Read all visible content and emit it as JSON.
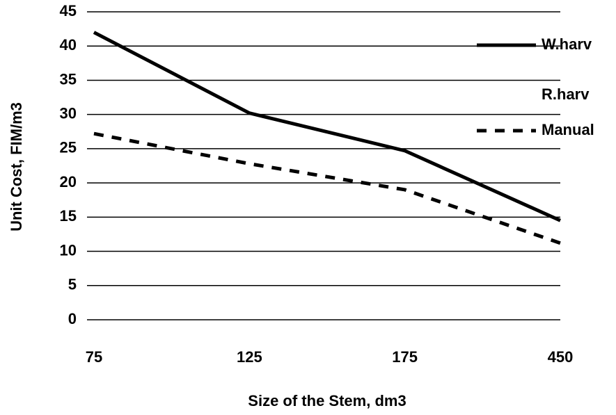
{
  "chart_data": {
    "type": "line",
    "x_label": "Size of the Stem, dm3",
    "y_label": "Unit Cost, FIM/m3",
    "categories": [
      "75",
      "125",
      "175",
      "450"
    ],
    "series": [
      {
        "name": "W.harv",
        "color": "#000000",
        "dash": "solid",
        "values": [
          42,
          30.2,
          24.7,
          14.5
        ]
      },
      {
        "name": "R.harv",
        "color": "#ffffff",
        "dash": "solid",
        "values": [
          null,
          null,
          null,
          null
        ]
      },
      {
        "name": "Manual",
        "color": "#000000",
        "dash": "dashed",
        "values": [
          27.2,
          22.8,
          19,
          11.2
        ]
      }
    ],
    "ylim": [
      0,
      45
    ],
    "yticks": [
      0,
      5,
      10,
      15,
      20,
      25,
      30,
      35,
      40,
      45
    ],
    "grid": true,
    "legend": "right"
  }
}
